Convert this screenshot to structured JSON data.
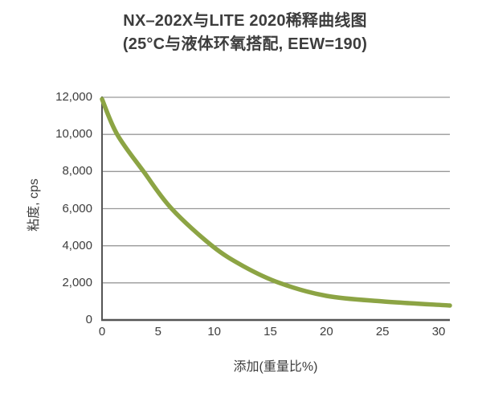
{
  "title": {
    "line1": "NX–202X与LITE 2020稀释曲线图",
    "line2": "(25°C与液体环氧搭配, EEW=190)"
  },
  "chart_data": {
    "type": "line",
    "title": "NX–202X与LITE 2020稀释曲线图",
    "subtitle": "(25°C与液体环氧搭配, EEW=190)",
    "xlabel": "添加(重量比%)",
    "ylabel": "粘度, cps",
    "xlim": [
      0,
      31
    ],
    "ylim": [
      0,
      12000
    ],
    "x_ticks": [
      0,
      5,
      10,
      15,
      20,
      25,
      30
    ],
    "y_ticks": [
      0,
      2000,
      4000,
      6000,
      8000,
      10000,
      12000
    ],
    "y_tick_labels": [
      "0",
      "2,000",
      "4,000",
      "6,000",
      "8,000",
      "10,000",
      "12,000"
    ],
    "grid": "horizontal-only",
    "legend": "none",
    "series": [
      {
        "name": "NX-202X / LITE 2020 dilution curve",
        "color": "#8CA444",
        "points": [
          [
            0,
            11900
          ],
          [
            1.35,
            10000
          ],
          [
            3.7,
            8000
          ],
          [
            6.2,
            6000
          ],
          [
            9.8,
            4000
          ],
          [
            12.6,
            2900
          ],
          [
            15.8,
            2000
          ],
          [
            20,
            1300
          ],
          [
            25,
            1000
          ],
          [
            31,
            780
          ]
        ]
      }
    ]
  },
  "colors": {
    "curve": "#8CA444",
    "gridline": "#999999",
    "axis": "#555555",
    "text": "#3D3D3D",
    "background": "#FFFFFF"
  }
}
